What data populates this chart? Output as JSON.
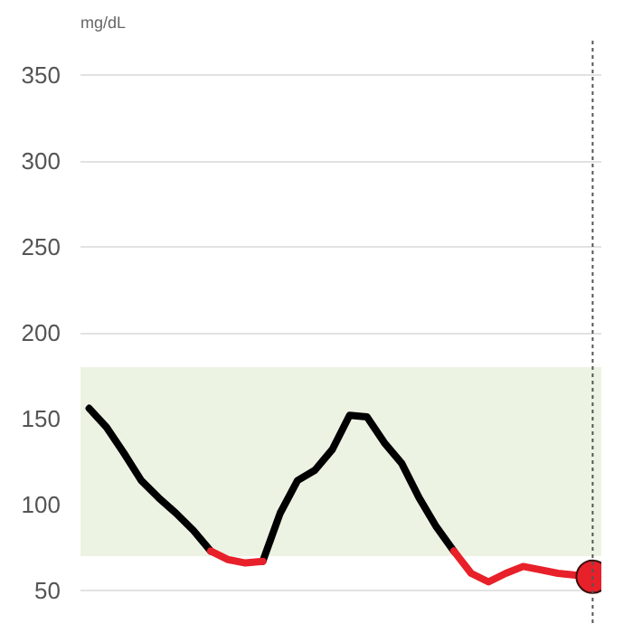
{
  "chart_data": {
    "type": "line",
    "ylabel": "mg/dL",
    "categories": [
      null,
      null,
      null,
      null,
      null,
      null,
      null,
      null,
      null,
      null,
      null,
      null,
      null,
      null,
      null,
      null,
      null,
      null,
      null,
      null,
      null,
      null,
      null,
      null,
      null,
      null,
      null,
      null,
      null,
      null
    ],
    "ylim": [
      30,
      370
    ],
    "yticks": [
      50,
      100,
      150,
      200,
      250,
      300,
      350
    ],
    "grid": "y",
    "tick_labels": "y",
    "line_style": "solid",
    "series": [
      {
        "color": "#000000",
        "values": [
          156,
          145,
          130,
          114,
          104,
          95,
          85,
          73,
          null,
          null,
          67,
          95,
          114,
          120,
          132,
          152,
          151,
          136,
          124,
          104,
          87,
          73,
          null,
          null,
          null,
          null,
          null,
          null,
          null,
          null
        ]
      },
      {
        "color": "#e8202a",
        "values": [
          null,
          null,
          null,
          null,
          null,
          null,
          null,
          73,
          68,
          66,
          67,
          null,
          null,
          null,
          null,
          null,
          null,
          null,
          null,
          null,
          null,
          73,
          60,
          55,
          60,
          64,
          62,
          60,
          59,
          58
        ]
      },
      {
        "type": "scatter",
        "color": "#e8202a",
        "marker": "circle",
        "values": [
          null,
          null,
          null,
          null,
          null,
          null,
          null,
          null,
          null,
          null,
          null,
          null,
          null,
          null,
          null,
          null,
          null,
          null,
          null,
          null,
          null,
          null,
          null,
          null,
          null,
          null,
          null,
          null,
          null,
          58
        ]
      }
    ],
    "bands": [
      {
        "axis": "y",
        "from": 70,
        "to": 180,
        "color": "#edf3e3"
      }
    ],
    "ref_lines": [
      {
        "axis": "x",
        "color": "#555555",
        "line_style": "dotted"
      }
    ]
  }
}
